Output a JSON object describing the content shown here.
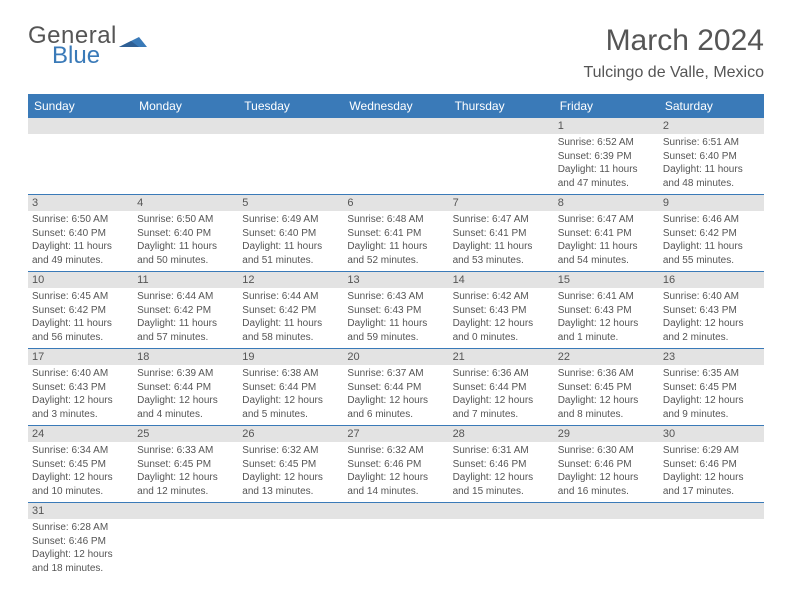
{
  "colors": {
    "header_bg": "#3a7ab8",
    "header_text": "#ffffff",
    "daynum_bg": "#e3e3e3",
    "body_text": "#555555",
    "rule": "#3a7ab8",
    "page_bg": "#ffffff"
  },
  "typography": {
    "month_title_pt": 30,
    "location_pt": 16,
    "weekday_pt": 12,
    "daynum_pt": 11,
    "cell_pt": 10
  },
  "logo": {
    "line1": "General",
    "line2": "Blue"
  },
  "title": "March 2024",
  "location": "Tulcingo de Valle, Mexico",
  "weekdays": [
    "Sunday",
    "Monday",
    "Tuesday",
    "Wednesday",
    "Thursday",
    "Friday",
    "Saturday"
  ],
  "weeks": [
    [
      {
        "n": "",
        "sr": "",
        "ss": "",
        "dl": ""
      },
      {
        "n": "",
        "sr": "",
        "ss": "",
        "dl": ""
      },
      {
        "n": "",
        "sr": "",
        "ss": "",
        "dl": ""
      },
      {
        "n": "",
        "sr": "",
        "ss": "",
        "dl": ""
      },
      {
        "n": "",
        "sr": "",
        "ss": "",
        "dl": ""
      },
      {
        "n": "1",
        "sr": "Sunrise: 6:52 AM",
        "ss": "Sunset: 6:39 PM",
        "dl": "Daylight: 11 hours and 47 minutes."
      },
      {
        "n": "2",
        "sr": "Sunrise: 6:51 AM",
        "ss": "Sunset: 6:40 PM",
        "dl": "Daylight: 11 hours and 48 minutes."
      }
    ],
    [
      {
        "n": "3",
        "sr": "Sunrise: 6:50 AM",
        "ss": "Sunset: 6:40 PM",
        "dl": "Daylight: 11 hours and 49 minutes."
      },
      {
        "n": "4",
        "sr": "Sunrise: 6:50 AM",
        "ss": "Sunset: 6:40 PM",
        "dl": "Daylight: 11 hours and 50 minutes."
      },
      {
        "n": "5",
        "sr": "Sunrise: 6:49 AM",
        "ss": "Sunset: 6:40 PM",
        "dl": "Daylight: 11 hours and 51 minutes."
      },
      {
        "n": "6",
        "sr": "Sunrise: 6:48 AM",
        "ss": "Sunset: 6:41 PM",
        "dl": "Daylight: 11 hours and 52 minutes."
      },
      {
        "n": "7",
        "sr": "Sunrise: 6:47 AM",
        "ss": "Sunset: 6:41 PM",
        "dl": "Daylight: 11 hours and 53 minutes."
      },
      {
        "n": "8",
        "sr": "Sunrise: 6:47 AM",
        "ss": "Sunset: 6:41 PM",
        "dl": "Daylight: 11 hours and 54 minutes."
      },
      {
        "n": "9",
        "sr": "Sunrise: 6:46 AM",
        "ss": "Sunset: 6:42 PM",
        "dl": "Daylight: 11 hours and 55 minutes."
      }
    ],
    [
      {
        "n": "10",
        "sr": "Sunrise: 6:45 AM",
        "ss": "Sunset: 6:42 PM",
        "dl": "Daylight: 11 hours and 56 minutes."
      },
      {
        "n": "11",
        "sr": "Sunrise: 6:44 AM",
        "ss": "Sunset: 6:42 PM",
        "dl": "Daylight: 11 hours and 57 minutes."
      },
      {
        "n": "12",
        "sr": "Sunrise: 6:44 AM",
        "ss": "Sunset: 6:42 PM",
        "dl": "Daylight: 11 hours and 58 minutes."
      },
      {
        "n": "13",
        "sr": "Sunrise: 6:43 AM",
        "ss": "Sunset: 6:43 PM",
        "dl": "Daylight: 11 hours and 59 minutes."
      },
      {
        "n": "14",
        "sr": "Sunrise: 6:42 AM",
        "ss": "Sunset: 6:43 PM",
        "dl": "Daylight: 12 hours and 0 minutes."
      },
      {
        "n": "15",
        "sr": "Sunrise: 6:41 AM",
        "ss": "Sunset: 6:43 PM",
        "dl": "Daylight: 12 hours and 1 minute."
      },
      {
        "n": "16",
        "sr": "Sunrise: 6:40 AM",
        "ss": "Sunset: 6:43 PM",
        "dl": "Daylight: 12 hours and 2 minutes."
      }
    ],
    [
      {
        "n": "17",
        "sr": "Sunrise: 6:40 AM",
        "ss": "Sunset: 6:43 PM",
        "dl": "Daylight: 12 hours and 3 minutes."
      },
      {
        "n": "18",
        "sr": "Sunrise: 6:39 AM",
        "ss": "Sunset: 6:44 PM",
        "dl": "Daylight: 12 hours and 4 minutes."
      },
      {
        "n": "19",
        "sr": "Sunrise: 6:38 AM",
        "ss": "Sunset: 6:44 PM",
        "dl": "Daylight: 12 hours and 5 minutes."
      },
      {
        "n": "20",
        "sr": "Sunrise: 6:37 AM",
        "ss": "Sunset: 6:44 PM",
        "dl": "Daylight: 12 hours and 6 minutes."
      },
      {
        "n": "21",
        "sr": "Sunrise: 6:36 AM",
        "ss": "Sunset: 6:44 PM",
        "dl": "Daylight: 12 hours and 7 minutes."
      },
      {
        "n": "22",
        "sr": "Sunrise: 6:36 AM",
        "ss": "Sunset: 6:45 PM",
        "dl": "Daylight: 12 hours and 8 minutes."
      },
      {
        "n": "23",
        "sr": "Sunrise: 6:35 AM",
        "ss": "Sunset: 6:45 PM",
        "dl": "Daylight: 12 hours and 9 minutes."
      }
    ],
    [
      {
        "n": "24",
        "sr": "Sunrise: 6:34 AM",
        "ss": "Sunset: 6:45 PM",
        "dl": "Daylight: 12 hours and 10 minutes."
      },
      {
        "n": "25",
        "sr": "Sunrise: 6:33 AM",
        "ss": "Sunset: 6:45 PM",
        "dl": "Daylight: 12 hours and 12 minutes."
      },
      {
        "n": "26",
        "sr": "Sunrise: 6:32 AM",
        "ss": "Sunset: 6:45 PM",
        "dl": "Daylight: 12 hours and 13 minutes."
      },
      {
        "n": "27",
        "sr": "Sunrise: 6:32 AM",
        "ss": "Sunset: 6:46 PM",
        "dl": "Daylight: 12 hours and 14 minutes."
      },
      {
        "n": "28",
        "sr": "Sunrise: 6:31 AM",
        "ss": "Sunset: 6:46 PM",
        "dl": "Daylight: 12 hours and 15 minutes."
      },
      {
        "n": "29",
        "sr": "Sunrise: 6:30 AM",
        "ss": "Sunset: 6:46 PM",
        "dl": "Daylight: 12 hours and 16 minutes."
      },
      {
        "n": "30",
        "sr": "Sunrise: 6:29 AM",
        "ss": "Sunset: 6:46 PM",
        "dl": "Daylight: 12 hours and 17 minutes."
      }
    ],
    [
      {
        "n": "31",
        "sr": "Sunrise: 6:28 AM",
        "ss": "Sunset: 6:46 PM",
        "dl": "Daylight: 12 hours and 18 minutes."
      },
      {
        "n": "",
        "sr": "",
        "ss": "",
        "dl": ""
      },
      {
        "n": "",
        "sr": "",
        "ss": "",
        "dl": ""
      },
      {
        "n": "",
        "sr": "",
        "ss": "",
        "dl": ""
      },
      {
        "n": "",
        "sr": "",
        "ss": "",
        "dl": ""
      },
      {
        "n": "",
        "sr": "",
        "ss": "",
        "dl": ""
      },
      {
        "n": "",
        "sr": "",
        "ss": "",
        "dl": ""
      }
    ]
  ]
}
